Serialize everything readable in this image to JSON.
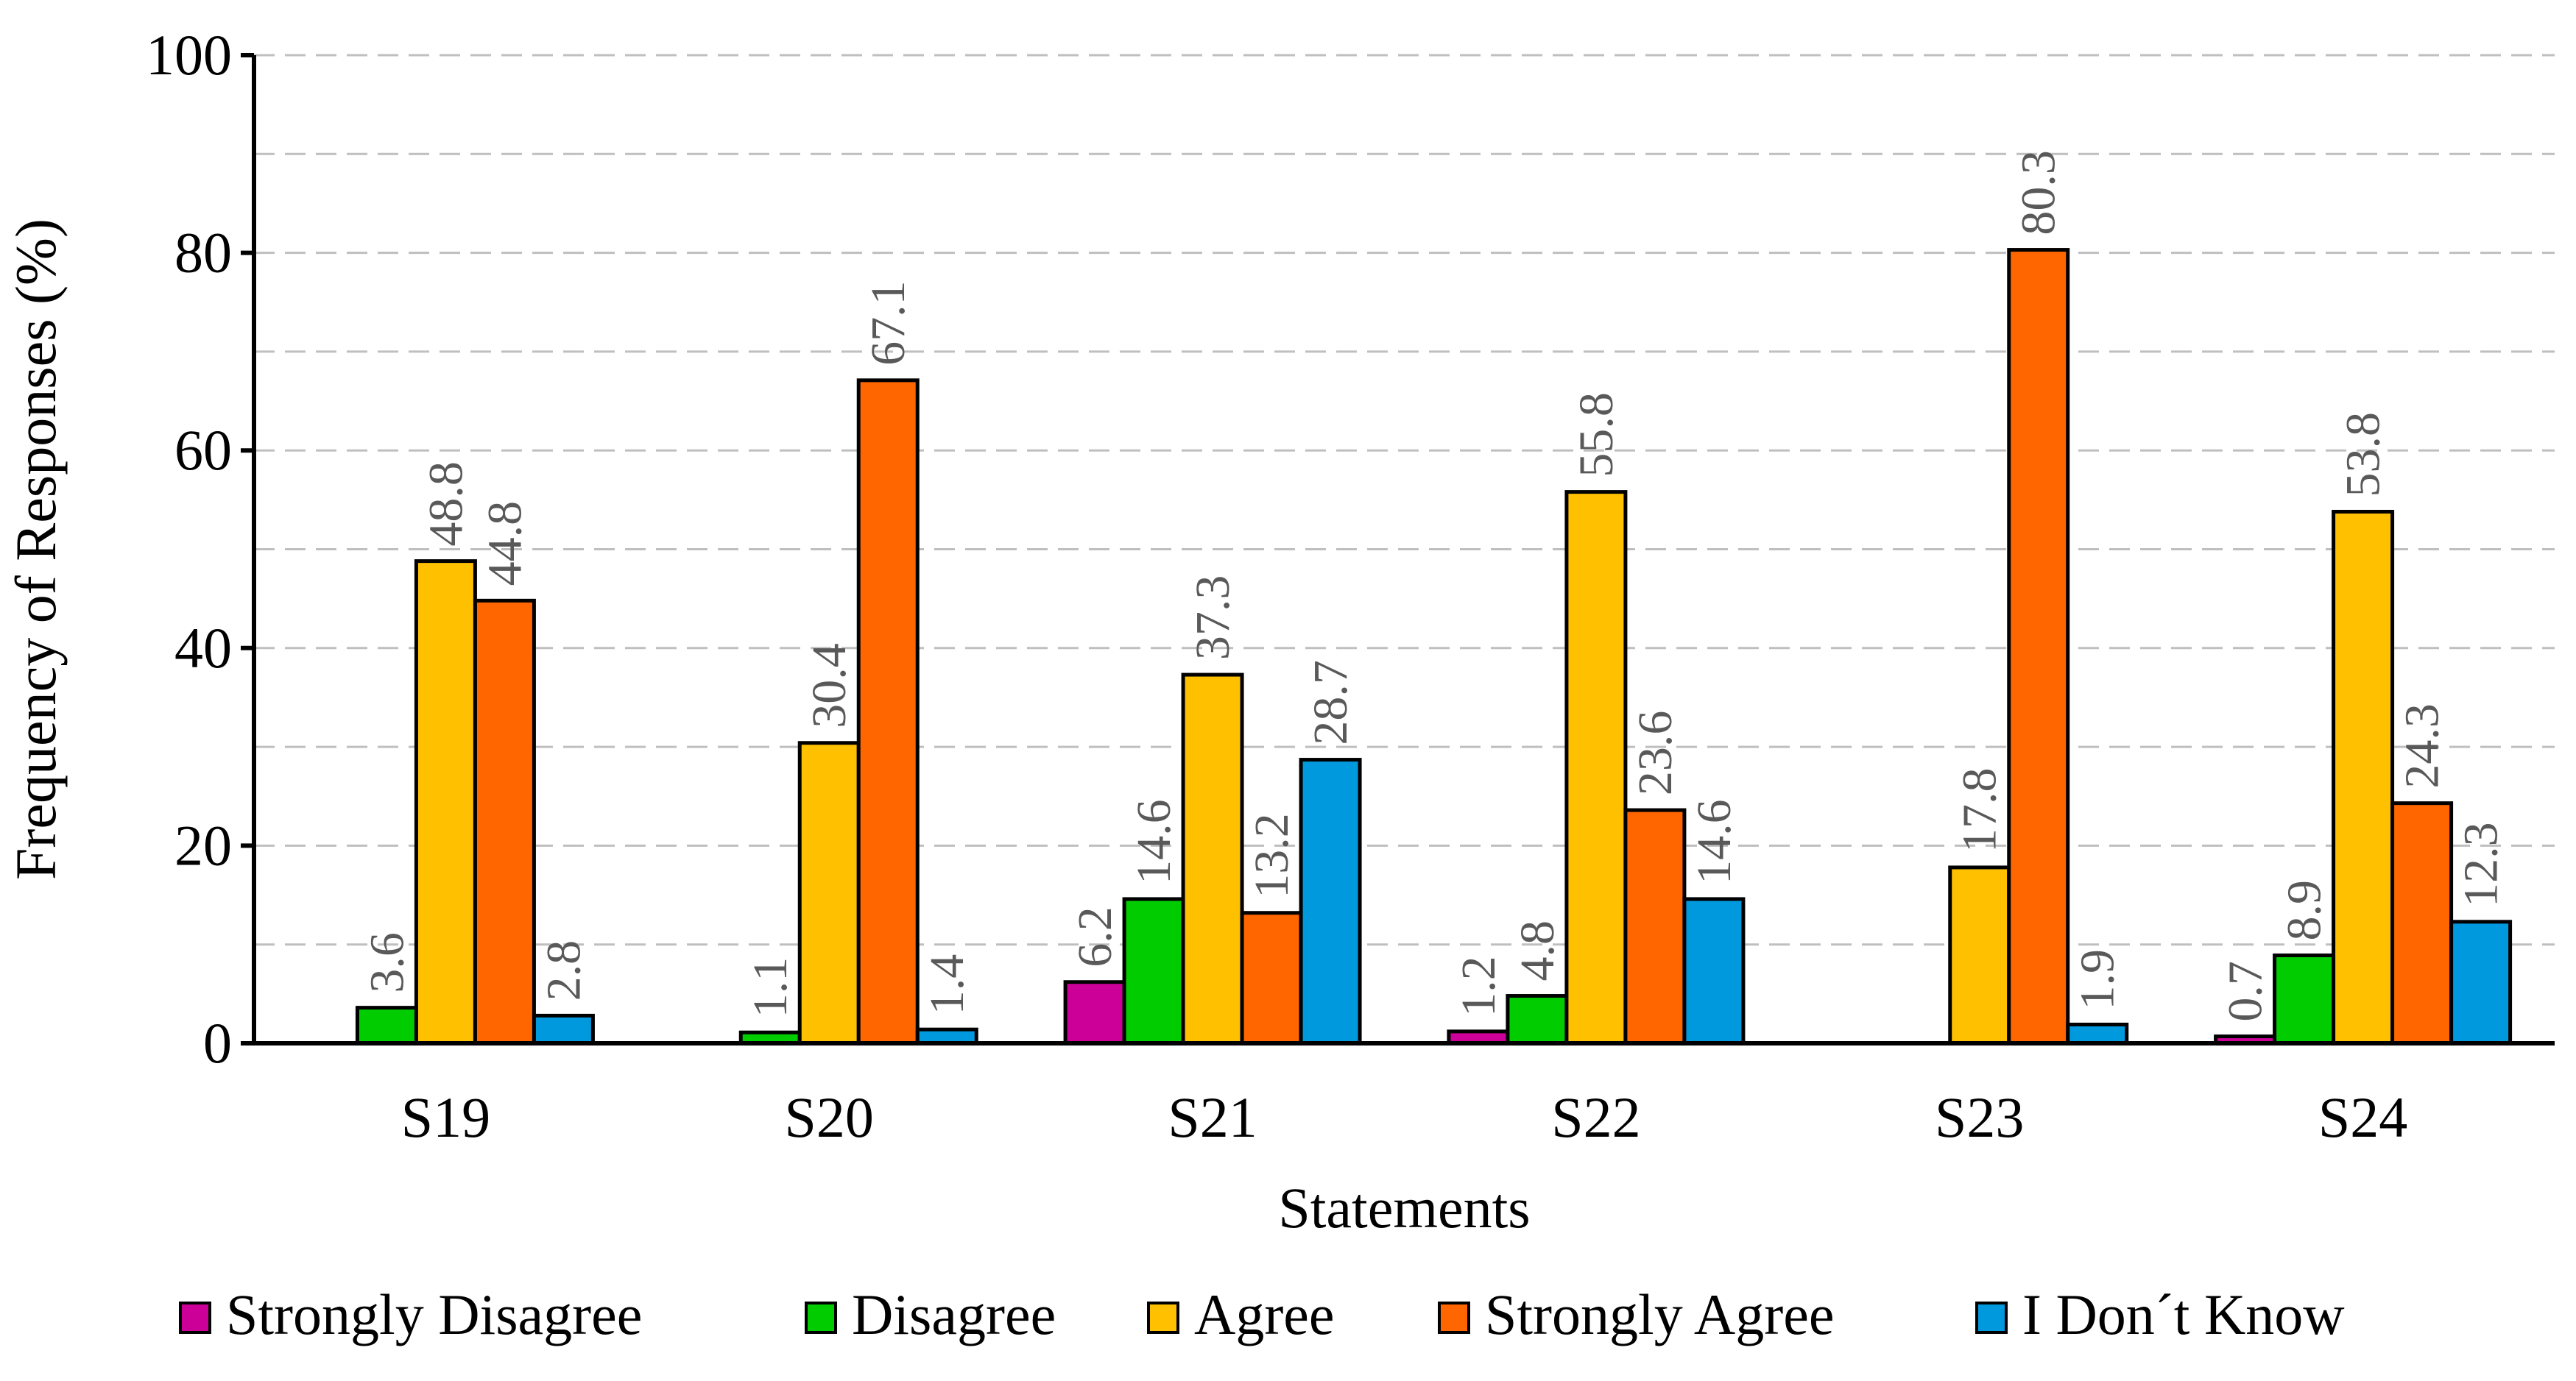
{
  "chart_data": {
    "type": "bar",
    "title": "",
    "xlabel": "Statements",
    "ylabel": "Frequency of Responses (%)",
    "ylim": [
      0,
      100
    ],
    "yticks": [
      0,
      20,
      40,
      60,
      80,
      100
    ],
    "ytick_labels": [
      "0",
      "20",
      "40",
      "60",
      "80",
      "100"
    ],
    "grid": true,
    "legend_position": "bottom",
    "categories": [
      "S19",
      "S20",
      "S21",
      "S22",
      "S23",
      "S24"
    ],
    "series": [
      {
        "name": "Strongly Disagree",
        "color": "#CC0099",
        "values": [
          null,
          null,
          6.2,
          1.2,
          null,
          0.7
        ],
        "labels": [
          "",
          "",
          "6.2",
          "1.2",
          "",
          "0.7"
        ]
      },
      {
        "name": "Disagree",
        "color": "#00CC00",
        "values": [
          3.6,
          1.1,
          14.6,
          4.8,
          null,
          8.9
        ],
        "labels": [
          "3.6",
          "1.1",
          "14.6",
          "4.8",
          "",
          "8.9"
        ]
      },
      {
        "name": "Agree",
        "color": "#FFC000",
        "values": [
          48.8,
          30.4,
          37.3,
          55.8,
          17.8,
          53.8
        ],
        "labels": [
          "48.8",
          "30.4",
          "37.3",
          "55.8",
          "17.8",
          "53.8"
        ]
      },
      {
        "name": "Strongly Agree",
        "color": "#FF6600",
        "values": [
          44.8,
          67.1,
          13.2,
          23.6,
          80.3,
          24.3
        ],
        "labels": [
          "44.8",
          "67.1",
          "13.2",
          "23.6",
          "80.3",
          "24.3"
        ]
      },
      {
        "name": "I Don´t Know",
        "color": "#0099DD",
        "values": [
          2.8,
          1.4,
          28.7,
          14.6,
          1.9,
          12.3
        ],
        "labels": [
          "2.8",
          "1.4",
          "28.7",
          "14.6",
          "1.9",
          "12.3"
        ]
      }
    ]
  }
}
